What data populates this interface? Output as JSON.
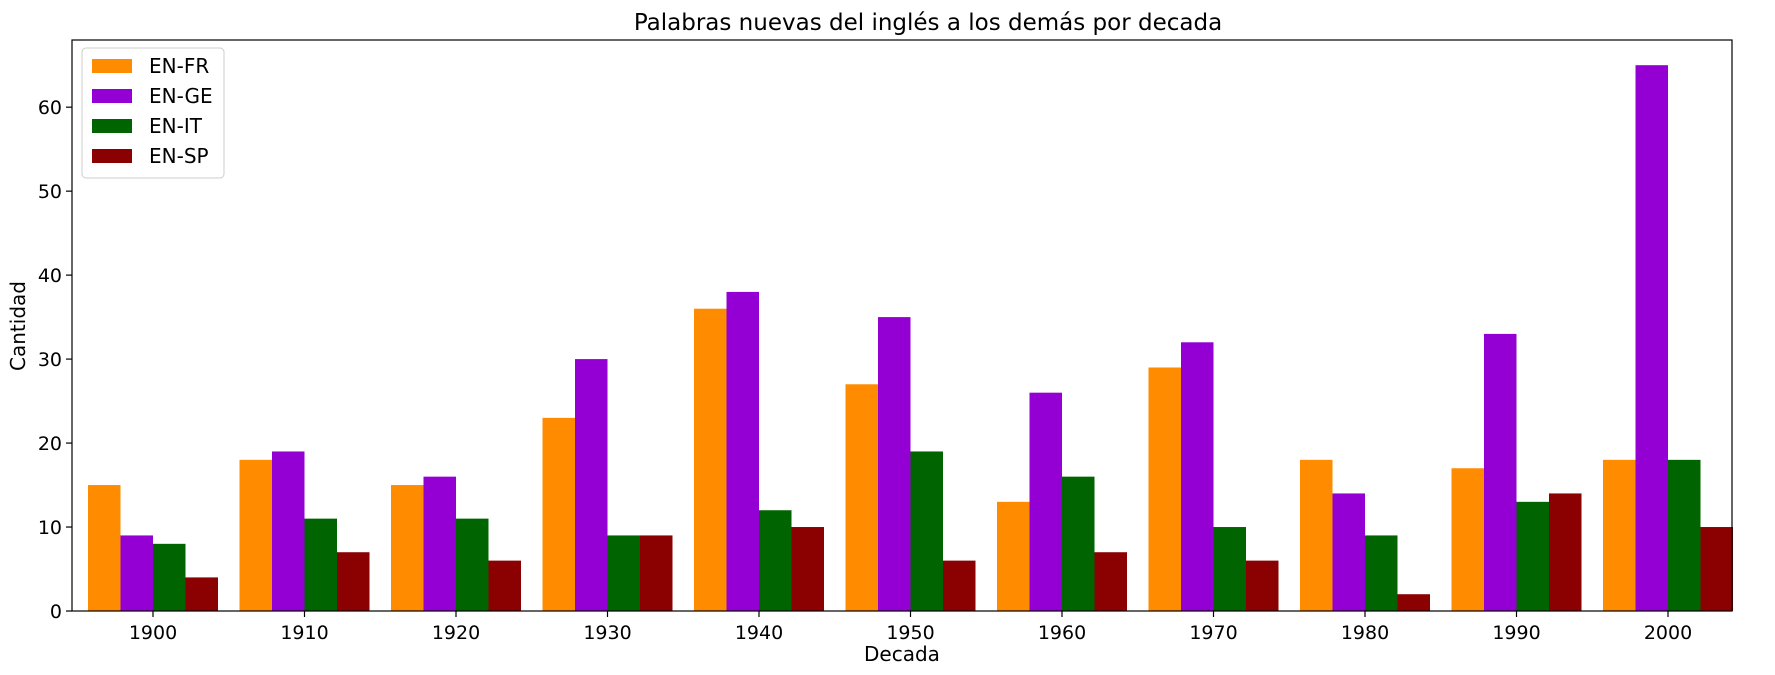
{
  "chart_data": {
    "type": "bar",
    "title": "Palabras nuevas del inglés a los demás por decada",
    "xlabel": "Decada",
    "ylabel": "Cantidad",
    "categories": [
      "1900",
      "1910",
      "1920",
      "1930",
      "1940",
      "1950",
      "1960",
      "1970",
      "1980",
      "1990",
      "2000"
    ],
    "series": [
      {
        "name": "EN-FR",
        "color": "#ff8c00",
        "values": [
          15,
          18,
          15,
          23,
          36,
          27,
          13,
          29,
          18,
          17,
          18
        ]
      },
      {
        "name": "EN-GE",
        "color": "#9400d3",
        "values": [
          9,
          19,
          16,
          30,
          38,
          35,
          26,
          32,
          14,
          33,
          65
        ]
      },
      {
        "name": "EN-IT",
        "color": "#006400",
        "values": [
          8,
          11,
          11,
          9,
          12,
          19,
          16,
          10,
          9,
          13,
          18
        ]
      },
      {
        "name": "EN-SP",
        "color": "#8b0000",
        "values": [
          4,
          7,
          6,
          9,
          10,
          6,
          7,
          6,
          2,
          14,
          10
        ]
      }
    ],
    "ylim": [
      0,
      68
    ],
    "yticks": [
      "0",
      "10",
      "20",
      "30",
      "40",
      "50",
      "60"
    ],
    "grid": false,
    "legend_position": "top-left"
  }
}
